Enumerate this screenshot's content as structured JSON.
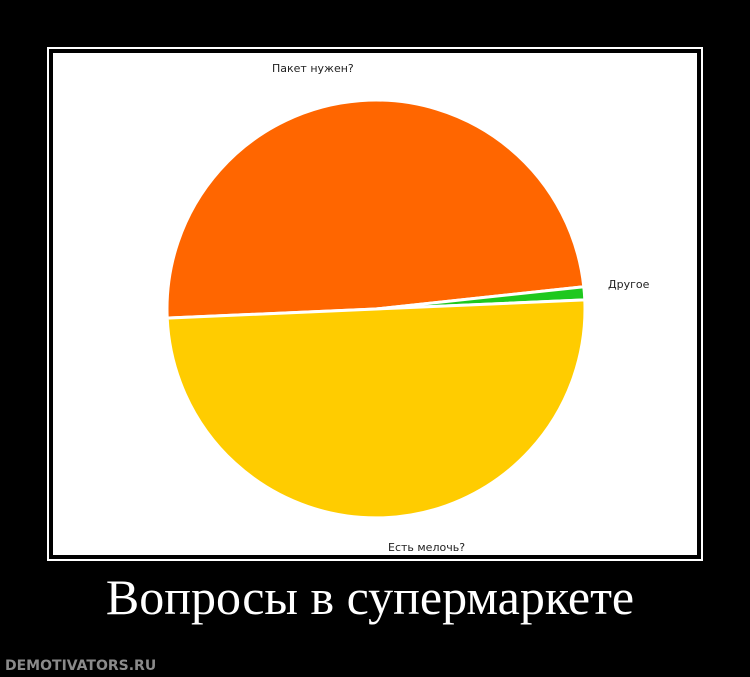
{
  "chart_data": {
    "type": "pie",
    "title": "",
    "slices": [
      {
        "label": "Пакет нужен?",
        "value": 49,
        "color": "#ff6600"
      },
      {
        "label": "Другое",
        "value": 1,
        "color": "#1ec81e"
      },
      {
        "label": "Есть мелочь?",
        "value": 50,
        "color": "#ffcc00"
      }
    ]
  },
  "poster": {
    "caption": "Вопросы в супермаркете",
    "watermark": "DEMOTIVATORS.RU"
  }
}
